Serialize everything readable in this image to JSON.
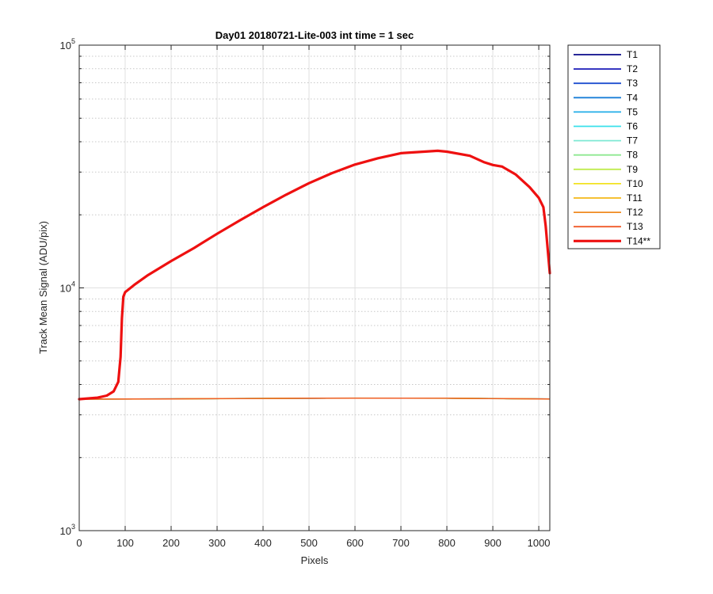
{
  "chart_data": {
    "type": "line",
    "title": "Day01 20180721-Lite-003 int time = 1 sec",
    "xlabel": "Pixels",
    "ylabel": "Track Mean Signal (ADU/pix)",
    "xlim": [
      0,
      1024
    ],
    "ylim": [
      1000,
      100000
    ],
    "yscale": "log",
    "grid": true,
    "legend_position": "outside-right",
    "x_ticks": [
      0,
      100,
      200,
      300,
      400,
      500,
      600,
      700,
      800,
      900,
      1000
    ],
    "y_ticks": [
      {
        "value": 1000,
        "base": "10",
        "exp": "3"
      },
      {
        "value": 10000,
        "base": "10",
        "exp": "4"
      },
      {
        "value": 100000,
        "base": "10",
        "exp": "5"
      }
    ],
    "baseline_series": [
      {
        "name": "T1",
        "color": "#0a0a8a",
        "values": [
          [
            0,
            3480
          ],
          [
            200,
            3490
          ],
          [
            400,
            3505
          ],
          [
            600,
            3515
          ],
          [
            800,
            3510
          ],
          [
            1000,
            3490
          ],
          [
            1024,
            3485
          ]
        ]
      },
      {
        "name": "T2",
        "color": "#1a1ab8",
        "values": [
          [
            0,
            3482
          ],
          [
            200,
            3492
          ],
          [
            400,
            3507
          ],
          [
            600,
            3517
          ],
          [
            800,
            3512
          ],
          [
            1000,
            3492
          ],
          [
            1024,
            3487
          ]
        ]
      },
      {
        "name": "T3",
        "color": "#1f4fd0",
        "values": [
          [
            0,
            3478
          ],
          [
            200,
            3488
          ],
          [
            400,
            3503
          ],
          [
            600,
            3513
          ],
          [
            800,
            3508
          ],
          [
            1000,
            3488
          ],
          [
            1024,
            3483
          ]
        ]
      },
      {
        "name": "T4",
        "color": "#1a7fd8",
        "values": [
          [
            0,
            3481
          ],
          [
            200,
            3491
          ],
          [
            400,
            3506
          ],
          [
            600,
            3516
          ],
          [
            800,
            3511
          ],
          [
            1000,
            3491
          ],
          [
            1024,
            3486
          ]
        ]
      },
      {
        "name": "T5",
        "color": "#22aee8",
        "values": [
          [
            0,
            3479
          ],
          [
            200,
            3489
          ],
          [
            400,
            3504
          ],
          [
            600,
            3514
          ],
          [
            800,
            3509
          ],
          [
            1000,
            3489
          ],
          [
            1024,
            3484
          ]
        ]
      },
      {
        "name": "T6",
        "color": "#3ae0ea",
        "values": [
          [
            0,
            3483
          ],
          [
            200,
            3493
          ],
          [
            400,
            3508
          ],
          [
            600,
            3518
          ],
          [
            800,
            3513
          ],
          [
            1000,
            3493
          ],
          [
            1024,
            3488
          ]
        ]
      },
      {
        "name": "T7",
        "color": "#7ee8d4",
        "values": [
          [
            0,
            3477
          ],
          [
            200,
            3487
          ],
          [
            400,
            3502
          ],
          [
            600,
            3512
          ],
          [
            800,
            3507
          ],
          [
            1000,
            3487
          ],
          [
            1024,
            3482
          ]
        ]
      },
      {
        "name": "T8",
        "color": "#8ee890",
        "values": [
          [
            0,
            3480
          ],
          [
            200,
            3490
          ],
          [
            400,
            3505
          ],
          [
            600,
            3515
          ],
          [
            800,
            3510
          ],
          [
            1000,
            3490
          ],
          [
            1024,
            3485
          ]
        ]
      },
      {
        "name": "T9",
        "color": "#c0ec4e",
        "values": [
          [
            0,
            3484
          ],
          [
            200,
            3494
          ],
          [
            400,
            3509
          ],
          [
            600,
            3519
          ],
          [
            800,
            3514
          ],
          [
            1000,
            3494
          ],
          [
            1024,
            3489
          ]
        ]
      },
      {
        "name": "T10",
        "color": "#f2e220",
        "values": [
          [
            0,
            3476
          ],
          [
            200,
            3486
          ],
          [
            400,
            3501
          ],
          [
            600,
            3511
          ],
          [
            800,
            3506
          ],
          [
            1000,
            3486
          ],
          [
            1024,
            3481
          ]
        ]
      },
      {
        "name": "T11",
        "color": "#f4b818",
        "values": [
          [
            0,
            3481
          ],
          [
            200,
            3491
          ],
          [
            400,
            3506
          ],
          [
            600,
            3516
          ],
          [
            800,
            3511
          ],
          [
            1000,
            3491
          ],
          [
            1024,
            3486
          ]
        ]
      },
      {
        "name": "T12",
        "color": "#f08a20",
        "values": [
          [
            0,
            3482
          ],
          [
            200,
            3492
          ],
          [
            400,
            3507
          ],
          [
            600,
            3517
          ],
          [
            800,
            3512
          ],
          [
            1000,
            3492
          ],
          [
            1024,
            3487
          ]
        ]
      },
      {
        "name": "T13",
        "color": "#f05a28",
        "values": [
          [
            0,
            3479
          ],
          [
            200,
            3489
          ],
          [
            400,
            3504
          ],
          [
            600,
            3514
          ],
          [
            800,
            3509
          ],
          [
            1000,
            3489
          ],
          [
            1024,
            3484
          ]
        ]
      }
    ],
    "highlight_series": {
      "name": "T14**",
      "color": "#ee1010",
      "values": [
        [
          0,
          3480
        ],
        [
          40,
          3530
        ],
        [
          60,
          3600
        ],
        [
          75,
          3750
        ],
        [
          85,
          4100
        ],
        [
          90,
          5200
        ],
        [
          93,
          7500
        ],
        [
          96,
          9200
        ],
        [
          100,
          9600
        ],
        [
          120,
          10300
        ],
        [
          150,
          11300
        ],
        [
          200,
          12900
        ],
        [
          250,
          14600
        ],
        [
          300,
          16700
        ],
        [
          350,
          19000
        ],
        [
          400,
          21500
        ],
        [
          450,
          24200
        ],
        [
          500,
          27000
        ],
        [
          550,
          29700
        ],
        [
          600,
          32200
        ],
        [
          650,
          34200
        ],
        [
          700,
          35900
        ],
        [
          750,
          36400
        ],
        [
          780,
          36700
        ],
        [
          800,
          36400
        ],
        [
          850,
          35000
        ],
        [
          880,
          33000
        ],
        [
          900,
          32100
        ],
        [
          920,
          31600
        ],
        [
          950,
          29300
        ],
        [
          980,
          26000
        ],
        [
          1000,
          23500
        ],
        [
          1010,
          21500
        ],
        [
          1015,
          18000
        ],
        [
          1020,
          14000
        ],
        [
          1024,
          11500
        ]
      ]
    }
  }
}
